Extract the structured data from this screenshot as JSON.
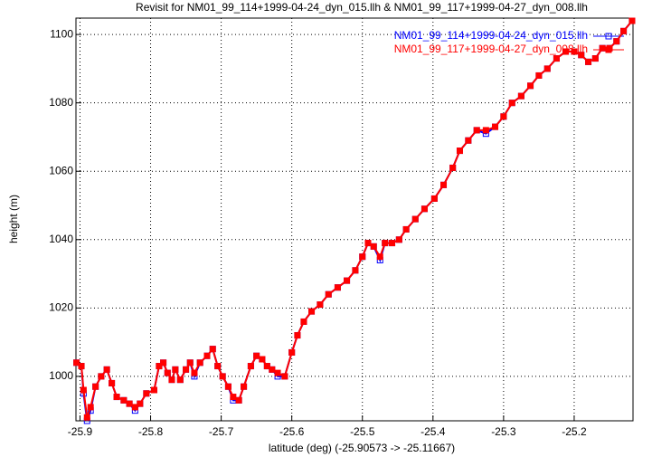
{
  "chart_data": {
    "type": "line",
    "title": "Revisit for NM01_99_114+1999-04-24_dyn_015.llh & NM01_99_117+1999-04-27_dyn_008.llh",
    "x_label": "latitude (deg) (-25.90573 -> -25.11667)",
    "y_label": "height (m)",
    "x": [
      -25.905,
      -25.898,
      -25.895,
      -25.89,
      -25.885,
      -25.878,
      -25.87,
      -25.862,
      -25.855,
      -25.848,
      -25.838,
      -25.83,
      -25.822,
      -25.815,
      -25.806,
      -25.795,
      -25.788,
      -25.782,
      -25.776,
      -25.77,
      -25.765,
      -25.758,
      -25.75,
      -25.744,
      -25.738,
      -25.73,
      -25.72,
      -25.712,
      -25.705,
      -25.698,
      -25.69,
      -25.683,
      -25.675,
      -25.668,
      -25.658,
      -25.65,
      -25.642,
      -25.635,
      -25.628,
      -25.62,
      -25.61,
      -25.6,
      -25.592,
      -25.583,
      -25.572,
      -25.56,
      -25.548,
      -25.535,
      -25.522,
      -25.51,
      -25.5,
      -25.492,
      -25.484,
      -25.475,
      -25.468,
      -25.458,
      -25.448,
      -25.438,
      -25.425,
      -25.412,
      -25.398,
      -25.385,
      -25.372,
      -25.362,
      -25.35,
      -25.338,
      -25.325,
      -25.312,
      -25.3,
      -25.288,
      -25.275,
      -25.262,
      -25.25,
      -25.238,
      -25.225,
      -25.212,
      -25.2,
      -25.19,
      -25.18,
      -25.17,
      -25.16,
      -25.15,
      -25.14,
      -25.13,
      -25.118
    ],
    "series": [
      {
        "name": "NM01_99_114+1999-04-24_dyn_015.llh",
        "color": "#0000ff",
        "values": [
          1004,
          1003,
          995,
          987,
          990,
          997,
          1000,
          1002,
          998,
          994,
          993,
          992,
          990,
          992,
          995,
          996,
          1003,
          1004,
          1001,
          999,
          1002,
          999,
          1002,
          1004,
          1000,
          1004,
          1006,
          1008,
          1003,
          1000,
          997,
          993,
          993,
          997,
          1003,
          1006,
          1005,
          1003,
          1002,
          1000,
          1000,
          1007,
          1012,
          1016,
          1019,
          1021,
          1024,
          1026,
          1028,
          1031,
          1035,
          1039,
          1038,
          1034,
          1039,
          1039,
          1040,
          1043,
          1046,
          1049,
          1052,
          1056,
          1061,
          1066,
          1069,
          1072,
          1071,
          1073,
          1076,
          1080,
          1082,
          1085,
          1088,
          1090,
          1093,
          1095,
          1095,
          1094,
          1092,
          1093,
          1096,
          1096,
          1098,
          1101,
          1104
        ]
      },
      {
        "name": "NM01_99_117+1999-04-27_dyn_008.llh",
        "color": "#ff0000",
        "values": [
          1004,
          1003,
          996,
          988,
          991,
          997,
          1000,
          1002,
          998,
          994,
          993,
          992,
          991,
          992,
          995,
          996,
          1003,
          1004,
          1001,
          999,
          1002,
          999,
          1002,
          1004,
          1001,
          1004,
          1006,
          1008,
          1003,
          1000,
          997,
          994,
          993,
          997,
          1003,
          1006,
          1005,
          1003,
          1002,
          1001,
          1000,
          1007,
          1012,
          1016,
          1019,
          1021,
          1024,
          1026,
          1028,
          1031,
          1035,
          1039,
          1038,
          1035,
          1039,
          1039,
          1040,
          1043,
          1046,
          1049,
          1052,
          1056,
          1061,
          1066,
          1069,
          1072,
          1072,
          1073,
          1076,
          1080,
          1082,
          1085,
          1088,
          1090,
          1093,
          1095,
          1095,
          1094,
          1092,
          1093,
          1096,
          1096,
          1098,
          1101,
          1104
        ]
      }
    ],
    "xlim": [
      -25.90573,
      -25.11667
    ],
    "xticks": [
      -25.9,
      -25.8,
      -25.7,
      -25.6,
      -25.5,
      -25.4,
      -25.3,
      -25.2
    ],
    "ylim": [
      987,
      1104.8
    ],
    "yticks": [
      1000,
      1020,
      1040,
      1060,
      1080,
      1100
    ],
    "grid": true,
    "legend": "top-right"
  }
}
